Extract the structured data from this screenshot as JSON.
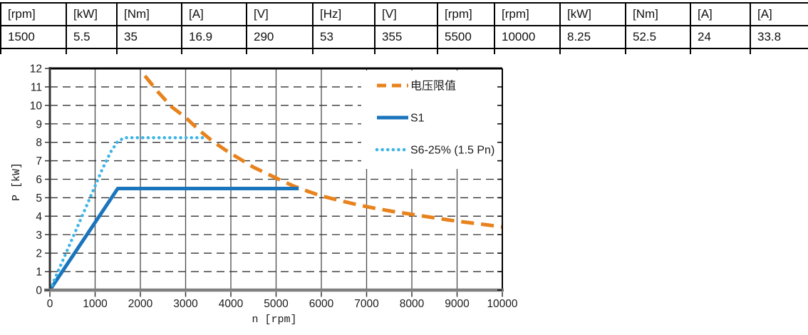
{
  "spec_table": {
    "headers": [
      "[rpm]",
      "[kW]",
      "[Nm]",
      "[A]",
      "[V]",
      "[Hz]",
      "[V]",
      "[rpm]",
      "[rpm]",
      "[kW]",
      "[Nm]",
      "[A]",
      "[A]"
    ],
    "values": [
      "1500",
      "5.5",
      "35",
      "16.9",
      "290",
      "53",
      "355",
      "5500",
      "10000",
      "8.25",
      "52.5",
      "24",
      "33.8"
    ]
  },
  "chart_data": {
    "type": "line",
    "title": "",
    "xlabel": "n [rpm]",
    "ylabel": "P [kW]",
    "xlim": [
      0,
      10000
    ],
    "ylim": [
      0,
      12
    ],
    "xticks": [
      0,
      1000,
      2000,
      3000,
      4000,
      5000,
      6000,
      7000,
      8000,
      9000,
      10000
    ],
    "yticks": [
      0,
      1,
      2,
      3,
      4,
      5,
      6,
      7,
      8,
      9,
      10,
      11,
      12
    ],
    "grid": true,
    "legend_position": "top-right-inside",
    "colors": {
      "voltage_limit": "#E8821D",
      "s1": "#1B75BC",
      "s6": "#3CB4E6",
      "grid": "#4a4a4a",
      "frame": "#000000",
      "bottom_axis": "#808080"
    },
    "series": [
      {
        "name": "电压限值",
        "style": "dashed",
        "color": "#E8821D",
        "points": [
          [
            2100,
            11.6
          ],
          [
            2400,
            10.7
          ],
          [
            2700,
            9.9
          ],
          [
            3000,
            9.35
          ],
          [
            3300,
            8.65
          ],
          [
            3600,
            8.05
          ],
          [
            3900,
            7.55
          ],
          [
            4200,
            7.1
          ],
          [
            4500,
            6.65
          ],
          [
            4800,
            6.3
          ],
          [
            5100,
            5.95
          ],
          [
            5400,
            5.62
          ],
          [
            5700,
            5.35
          ],
          [
            6000,
            5.1
          ],
          [
            6400,
            4.85
          ],
          [
            6800,
            4.62
          ],
          [
            7200,
            4.42
          ],
          [
            7600,
            4.25
          ],
          [
            8000,
            4.1
          ],
          [
            8400,
            3.95
          ],
          [
            8800,
            3.8
          ],
          [
            9200,
            3.67
          ],
          [
            9600,
            3.55
          ],
          [
            10000,
            3.42
          ]
        ]
      },
      {
        "name": "S1",
        "style": "solid",
        "color": "#1B75BC",
        "points": [
          [
            0,
            0
          ],
          [
            1500,
            5.5
          ],
          [
            5500,
            5.5
          ]
        ]
      },
      {
        "name": "S6-25% (1.5 Pn)",
        "style": "dotted",
        "color": "#3CB4E6",
        "points": [
          [
            0,
            0
          ],
          [
            800,
            4.5
          ],
          [
            1150,
            6.5
          ],
          [
            1350,
            7.5
          ],
          [
            1500,
            8.05
          ],
          [
            1650,
            8.25
          ],
          [
            3450,
            8.25
          ]
        ]
      }
    ]
  }
}
